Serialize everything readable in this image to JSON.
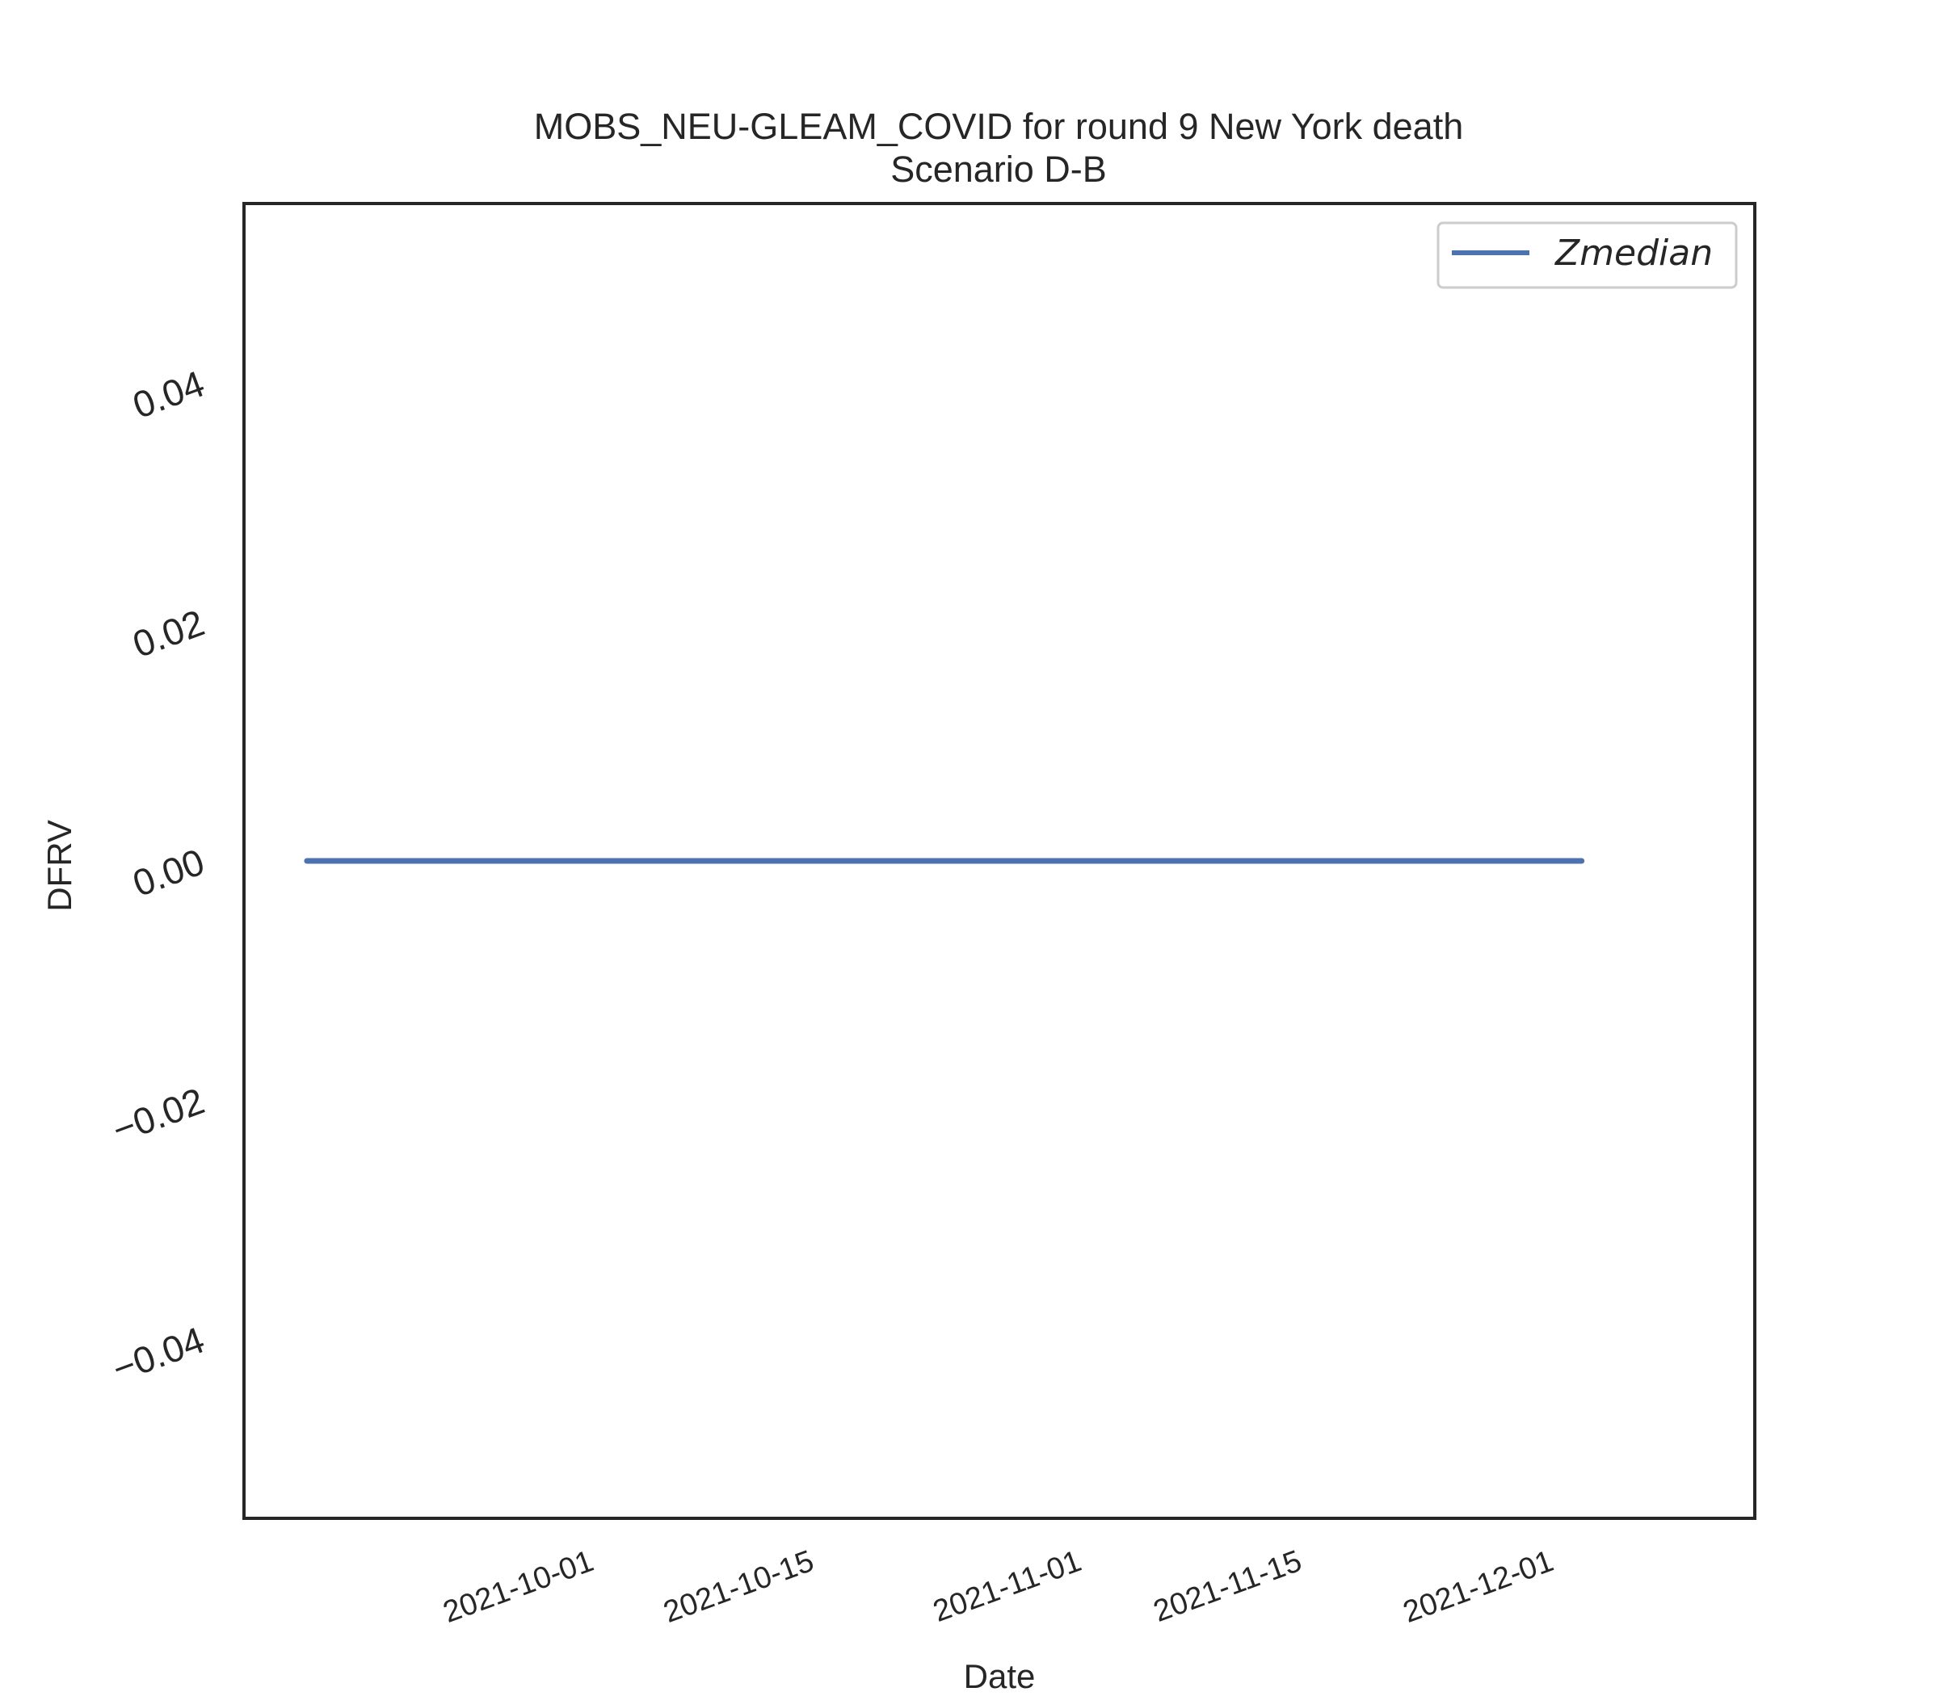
{
  "chart_data": {
    "type": "line",
    "title": "MOBS_NEU-GLEAM_COVID for round 9 New York death",
    "subtitle": "Scenario D-B",
    "xlabel": "Date",
    "ylabel": "DFRV",
    "xlim": [
      "2021-09-10",
      "2021-12-15"
    ],
    "ylim": [
      -0.055,
      0.055
    ],
    "x_ticks": [
      "2021-10-01",
      "2021-10-15",
      "2021-11-01",
      "2021-11-15",
      "2021-12-01"
    ],
    "y_ticks": [
      -0.04,
      -0.02,
      0.0,
      0.02,
      0.04
    ],
    "y_tick_labels": [
      "−0.04",
      "−0.02",
      "0.00",
      "0.02",
      "0.04"
    ],
    "grid": false,
    "legend_position": "top-right",
    "series": [
      {
        "name": "Zmedian",
        "color": "#4c72b0",
        "x": [
          "2021-09-14",
          "2021-12-04"
        ],
        "y": [
          0.0,
          0.0
        ]
      }
    ]
  }
}
